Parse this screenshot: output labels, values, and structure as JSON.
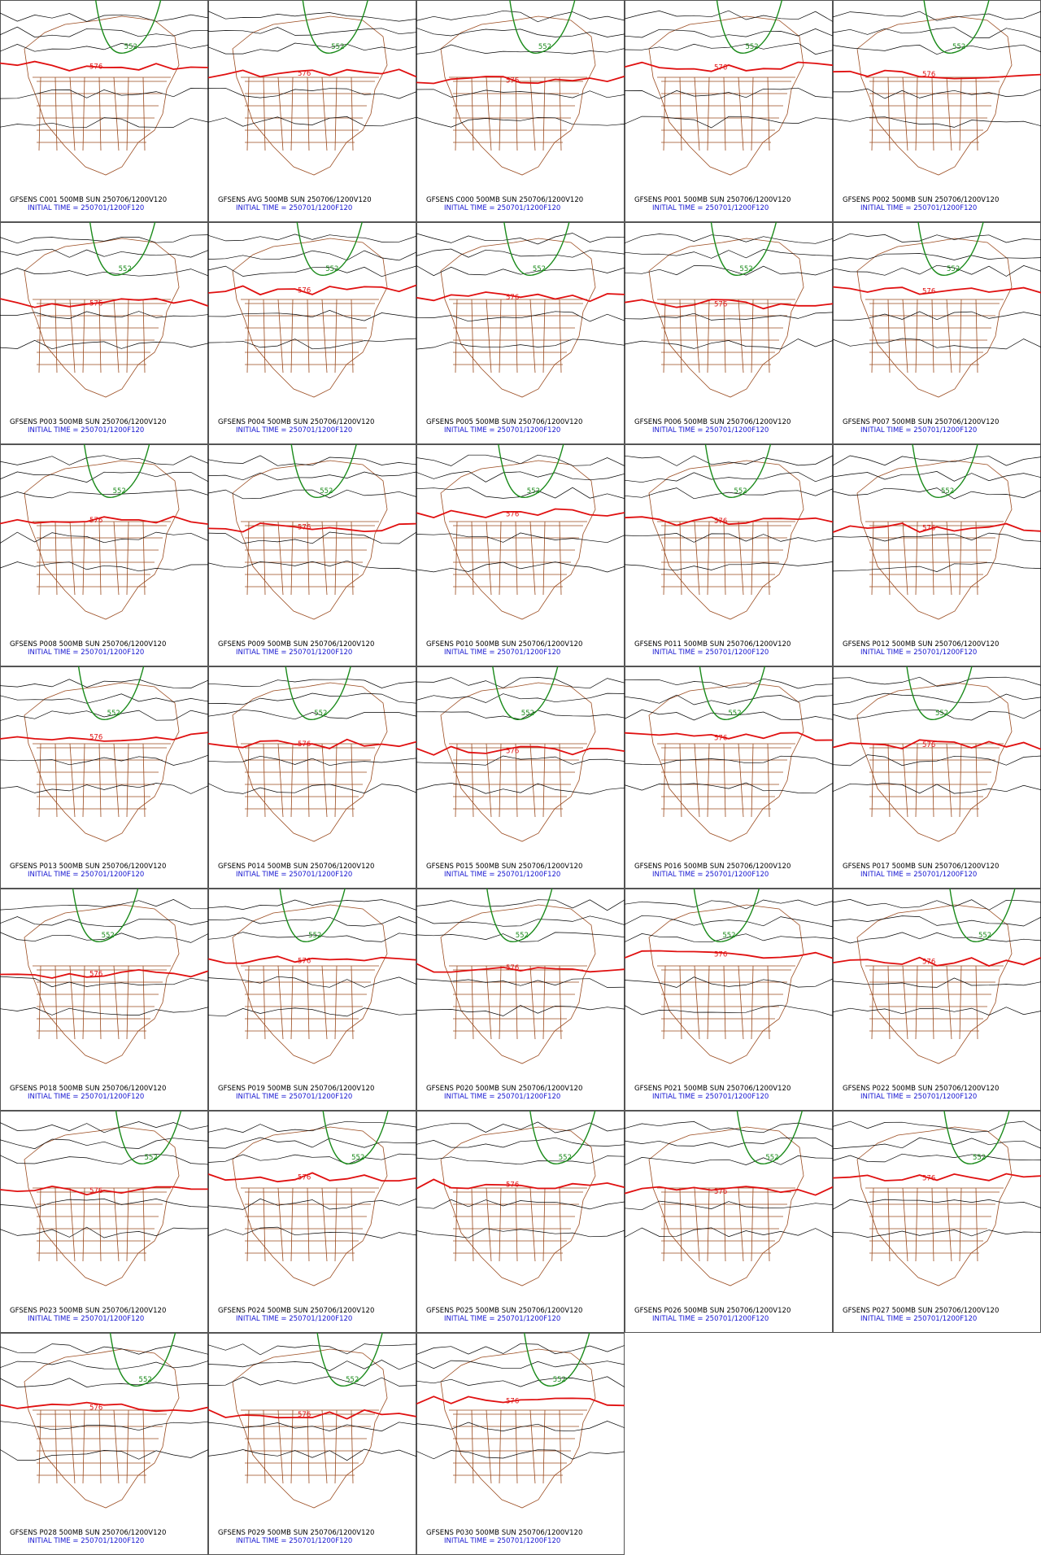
{
  "contour_labels": [
    "576",
    "552"
  ],
  "panels": [
    {
      "title": "GFSENS C001 500MB SUN 250706/1200V120",
      "init": "INITIAL TIME = 250701/1200F120"
    },
    {
      "title": "GFSENS AVG 500MB SUN 250706/1200V120",
      "init": "INITIAL TIME = 250701/1200F120"
    },
    {
      "title": "GFSENS C000 500MB SUN 250706/1200V120",
      "init": "INITIAL TIME = 250701/1200F120"
    },
    {
      "title": "GFSENS P001 500MB SUN 250706/1200V120",
      "init": "INITIAL TIME = 250701/1200F120"
    },
    {
      "title": "GFSENS P002 500MB SUN 250706/1200V120",
      "init": "INITIAL TIME = 250701/1200F120"
    },
    {
      "title": "GFSENS P003 500MB SUN 250706/1200V120",
      "init": "INITIAL TIME = 250701/1200F120"
    },
    {
      "title": "GFSENS P004 500MB SUN 250706/1200V120",
      "init": "INITIAL TIME = 250701/1200F120"
    },
    {
      "title": "GFSENS P005 500MB SUN 250706/1200V120",
      "init": "INITIAL TIME = 250701/1200F120"
    },
    {
      "title": "GFSENS P006 500MB SUN 250706/1200V120",
      "init": "INITIAL TIME = 250701/1200F120"
    },
    {
      "title": "GFSENS P007 500MB SUN 250706/1200V120",
      "init": "INITIAL TIME = 250701/1200F120"
    },
    {
      "title": "GFSENS P008 500MB SUN 250706/1200V120",
      "init": "INITIAL TIME = 250701/1200F120"
    },
    {
      "title": "GFSENS P009 500MB SUN 250706/1200V120",
      "init": "INITIAL TIME = 250701/1200F120"
    },
    {
      "title": "GFSENS P010 500MB SUN 250706/1200V120",
      "init": "INITIAL TIME = 250701/1200F120"
    },
    {
      "title": "GFSENS P011 500MB SUN 250706/1200V120",
      "init": "INITIAL TIME = 250701/1200F120"
    },
    {
      "title": "GFSENS P012 500MB SUN 250706/1200V120",
      "init": "INITIAL TIME = 250701/1200F120"
    },
    {
      "title": "GFSENS P013 500MB SUN 250706/1200V120",
      "init": "INITIAL TIME = 250701/1200F120"
    },
    {
      "title": "GFSENS P014 500MB SUN 250706/1200V120",
      "init": "INITIAL TIME = 250701/1200F120"
    },
    {
      "title": "GFSENS P015 500MB SUN 250706/1200V120",
      "init": "INITIAL TIME = 250701/1200F120"
    },
    {
      "title": "GFSENS P016 500MB SUN 250706/1200V120",
      "init": "INITIAL TIME = 250701/1200F120"
    },
    {
      "title": "GFSENS P017 500MB SUN 250706/1200V120",
      "init": "INITIAL TIME = 250701/1200F120"
    },
    {
      "title": "GFSENS P018 500MB SUN 250706/1200V120",
      "init": "INITIAL TIME = 250701/1200F120"
    },
    {
      "title": "GFSENS P019 500MB SUN 250706/1200V120",
      "init": "INITIAL TIME = 250701/1200F120"
    },
    {
      "title": "GFSENS P020 500MB SUN 250706/1200V120",
      "init": "INITIAL TIME = 250701/1200F120"
    },
    {
      "title": "GFSENS P021 500MB SUN 250706/1200V120",
      "init": "INITIAL TIME = 250701/1200F120"
    },
    {
      "title": "GFSENS P022 500MB SUN 250706/1200V120",
      "init": "INITIAL TIME = 250701/1200F120"
    },
    {
      "title": "GFSENS P023 500MB SUN 250706/1200V120",
      "init": "INITIAL TIME = 250701/1200F120"
    },
    {
      "title": "GFSENS P024 500MB SUN 250706/1200V120",
      "init": "INITIAL TIME = 250701/1200F120"
    },
    {
      "title": "GFSENS P025 500MB SUN 250706/1200V120",
      "init": "INITIAL TIME = 250701/1200F120"
    },
    {
      "title": "GFSENS P026 500MB SUN 250706/1200V120",
      "init": "INITIAL TIME = 250701/1200F120"
    },
    {
      "title": "GFSENS P027 500MB SUN 250706/1200V120",
      "init": "INITIAL TIME = 250701/1200F120"
    },
    {
      "title": "GFSENS P028 500MB SUN 250706/1200V120",
      "init": "INITIAL TIME = 250701/1200F120"
    },
    {
      "title": "GFSENS P029 500MB SUN 250706/1200V120",
      "init": "INITIAL TIME = 250701/1200F120"
    },
    {
      "title": "GFSENS P030 500MB SUN 250706/1200V120",
      "init": "INITIAL TIME = 250701/1200F120"
    }
  ]
}
